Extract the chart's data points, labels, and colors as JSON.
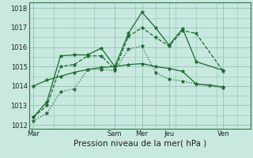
{
  "background_color": "#c8e8e0",
  "grid_color": "#90c4b4",
  "line_color": "#1a6b2a",
  "title": "Pression niveau de la mer( hPa )",
  "tick_fontsize": 6.0,
  "xlabel_fontsize": 7.5,
  "ylim": [
    1011.8,
    1018.3
  ],
  "yticks": [
    1012,
    1013,
    1014,
    1015,
    1016,
    1017,
    1018
  ],
  "day_labels": [
    "Mar",
    "Sam",
    "Mer",
    "Jeu",
    "Ven"
  ],
  "day_positions": [
    0,
    0.375,
    0.5,
    0.625,
    0.875
  ],
  "xlim": [
    -0.02,
    1.0
  ],
  "series": [
    {
      "x": [
        0,
        0.0625,
        0.125,
        0.1875,
        0.25,
        0.3125,
        0.375,
        0.4375,
        0.5,
        0.5625,
        0.625,
        0.6875,
        0.75,
        0.875
      ],
      "y": [
        1012.2,
        1012.6,
        1013.7,
        1013.85,
        1014.85,
        1014.85,
        1014.8,
        1015.9,
        1016.05,
        1014.7,
        1014.35,
        1014.25,
        1014.1,
        1013.9
      ],
      "linestyle": "dotted",
      "marker": "*",
      "markersize": 3.5
    },
    {
      "x": [
        0,
        0.0625,
        0.125,
        0.1875,
        0.25,
        0.3125,
        0.375,
        0.4375,
        0.5,
        0.5625,
        0.625,
        0.6875,
        0.75,
        0.875
      ],
      "y": [
        1012.4,
        1013.0,
        1015.0,
        1015.1,
        1015.55,
        1015.55,
        1014.85,
        1016.55,
        1017.0,
        1016.5,
        1016.05,
        1016.85,
        1016.7,
        1014.75
      ],
      "linestyle": "dashed",
      "marker": "*",
      "markersize": 3.5
    },
    {
      "x": [
        0,
        0.0625,
        0.125,
        0.1875,
        0.25,
        0.3125,
        0.375,
        0.4375,
        0.5,
        0.5625,
        0.625,
        0.6875,
        0.75,
        0.875
      ],
      "y": [
        1012.4,
        1013.2,
        1015.55,
        1015.6,
        1015.6,
        1015.95,
        1015.0,
        1016.7,
        1017.8,
        1017.0,
        1016.1,
        1016.95,
        1015.25,
        1014.8
      ],
      "linestyle": "solid",
      "marker": "*",
      "markersize": 3.5
    },
    {
      "x": [
        0,
        0.0625,
        0.125,
        0.1875,
        0.25,
        0.3125,
        0.375,
        0.4375,
        0.5,
        0.5625,
        0.625,
        0.6875,
        0.75,
        0.8125,
        0.875
      ],
      "y": [
        1014.0,
        1014.3,
        1014.5,
        1014.7,
        1014.85,
        1014.95,
        1015.0,
        1015.1,
        1015.15,
        1015.0,
        1014.9,
        1014.75,
        1014.1,
        1014.05,
        1013.95
      ],
      "linestyle": "solid",
      "marker": "*",
      "markersize": 3.5
    }
  ]
}
